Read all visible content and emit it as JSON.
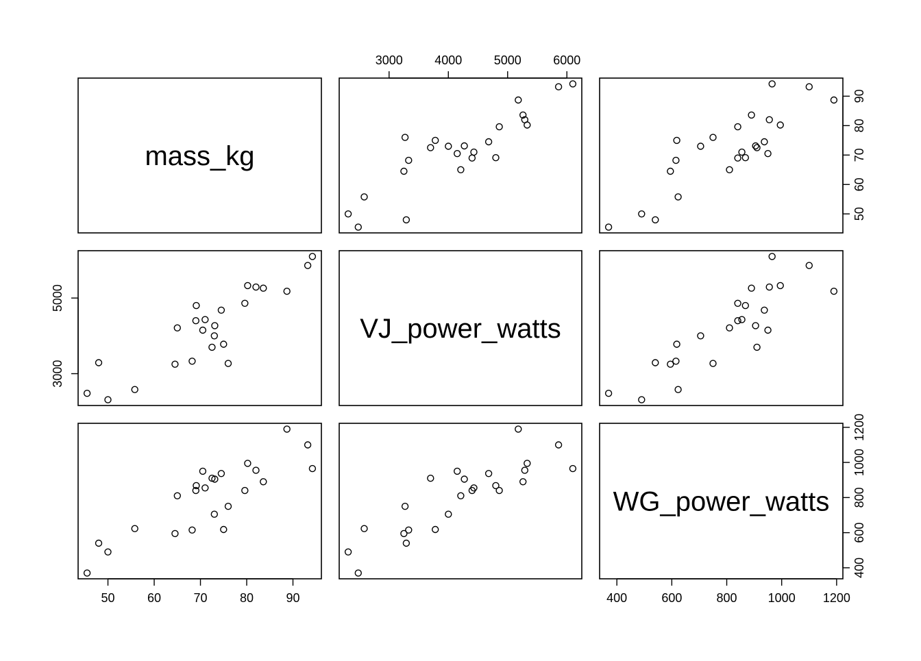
{
  "chart_data": {
    "type": "scatter",
    "variables": [
      "mass_kg",
      "VJ_power_watts",
      "WG_power_watts"
    ],
    "ranges": {
      "mass_kg": [
        45.5,
        94.2
      ],
      "VJ_power_watts": [
        2310,
        6100
      ],
      "WG_power_watts": [
        370,
        1190
      ]
    },
    "ticks": {
      "mass_kg": [
        "50",
        "60",
        "70",
        "80",
        "90"
      ],
      "VJ_power_watts": [
        "3000",
        "4000",
        "5000",
        "6000"
      ],
      "WG_power_watts": [
        "400",
        "600",
        "800",
        "1000",
        "1200"
      ]
    },
    "tick_values": {
      "mass_kg": [
        50,
        60,
        70,
        80,
        90
      ],
      "VJ_power_watts": [
        3000,
        4000,
        5000,
        6000
      ],
      "WG_power_watts": [
        400,
        600,
        800,
        1000,
        1200
      ]
    },
    "vj_left_tick_labels": [
      "3000",
      "5000"
    ],
    "vj_left_tick_values": [
      3000,
      5000
    ],
    "observations": [
      {
        "mass_kg": 45.5,
        "VJ_power_watts": 2480,
        "WG_power_watts": 370
      },
      {
        "mass_kg": 48.0,
        "VJ_power_watts": 3290,
        "WG_power_watts": 540
      },
      {
        "mass_kg": 50.0,
        "VJ_power_watts": 2310,
        "WG_power_watts": 490
      },
      {
        "mass_kg": 55.8,
        "VJ_power_watts": 2580,
        "WG_power_watts": 623
      },
      {
        "mass_kg": 64.5,
        "VJ_power_watts": 3250,
        "WG_power_watts": 595
      },
      {
        "mass_kg": 65.0,
        "VJ_power_watts": 4210,
        "WG_power_watts": 810
      },
      {
        "mass_kg": 68.2,
        "VJ_power_watts": 3330,
        "WG_power_watts": 615
      },
      {
        "mass_kg": 69.0,
        "VJ_power_watts": 4400,
        "WG_power_watts": 840
      },
      {
        "mass_kg": 69.1,
        "VJ_power_watts": 4800,
        "WG_power_watts": 868
      },
      {
        "mass_kg": 70.5,
        "VJ_power_watts": 4150,
        "WG_power_watts": 950
      },
      {
        "mass_kg": 71.0,
        "VJ_power_watts": 4430,
        "WG_power_watts": 855
      },
      {
        "mass_kg": 72.5,
        "VJ_power_watts": 3700,
        "WG_power_watts": 910
      },
      {
        "mass_kg": 73.0,
        "VJ_power_watts": 4000,
        "WG_power_watts": 705
      },
      {
        "mass_kg": 73.1,
        "VJ_power_watts": 4270,
        "WG_power_watts": 905
      },
      {
        "mass_kg": 74.5,
        "VJ_power_watts": 4680,
        "WG_power_watts": 937
      },
      {
        "mass_kg": 75.0,
        "VJ_power_watts": 3780,
        "WG_power_watts": 618
      },
      {
        "mass_kg": 76.0,
        "VJ_power_watts": 3270,
        "WG_power_watts": 750
      },
      {
        "mass_kg": 79.6,
        "VJ_power_watts": 4860,
        "WG_power_watts": 840
      },
      {
        "mass_kg": 80.2,
        "VJ_power_watts": 5330,
        "WG_power_watts": 995
      },
      {
        "mass_kg": 82.0,
        "VJ_power_watts": 5290,
        "WG_power_watts": 955
      },
      {
        "mass_kg": 83.6,
        "VJ_power_watts": 5260,
        "WG_power_watts": 890
      },
      {
        "mass_kg": 88.7,
        "VJ_power_watts": 5180,
        "WG_power_watts": 1190
      },
      {
        "mass_kg": 93.2,
        "VJ_power_watts": 5860,
        "WG_power_watts": 1100
      },
      {
        "mass_kg": 94.2,
        "VJ_power_watts": 6100,
        "WG_power_watts": 965
      }
    ]
  }
}
